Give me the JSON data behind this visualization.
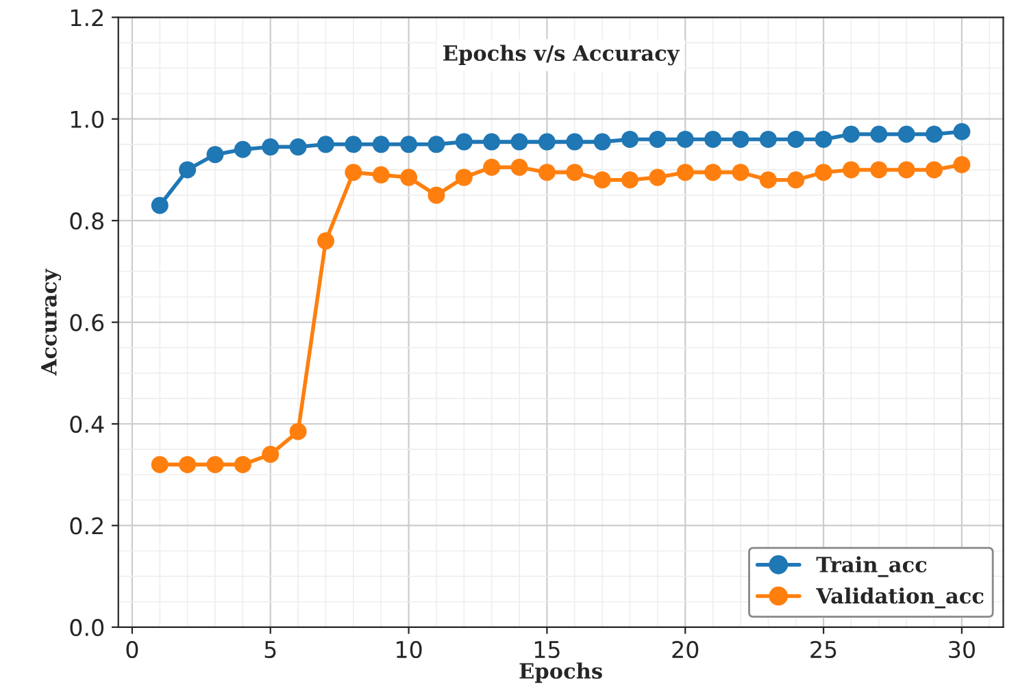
{
  "chart_data": {
    "type": "line",
    "title": "Epochs v/s Accuracy",
    "xlabel": "Epochs",
    "ylabel": "Accuracy",
    "x": [
      1,
      2,
      3,
      4,
      5,
      6,
      7,
      8,
      9,
      10,
      11,
      12,
      13,
      14,
      15,
      16,
      17,
      18,
      19,
      20,
      21,
      22,
      23,
      24,
      25,
      26,
      27,
      28,
      29,
      30
    ],
    "series": [
      {
        "name": "Train_acc",
        "color": "#1f77b4",
        "values": [
          0.83,
          0.9,
          0.93,
          0.94,
          0.945,
          0.945,
          0.95,
          0.95,
          0.95,
          0.95,
          0.95,
          0.955,
          0.955,
          0.955,
          0.955,
          0.955,
          0.955,
          0.96,
          0.96,
          0.96,
          0.96,
          0.96,
          0.96,
          0.96,
          0.96,
          0.97,
          0.97,
          0.97,
          0.97,
          0.975
        ]
      },
      {
        "name": "Validation_acc",
        "color": "#ff7f0e",
        "values": [
          0.32,
          0.32,
          0.32,
          0.32,
          0.34,
          0.385,
          0.76,
          0.895,
          0.89,
          0.885,
          0.85,
          0.885,
          0.905,
          0.905,
          0.895,
          0.895,
          0.88,
          0.88,
          0.885,
          0.895,
          0.895,
          0.895,
          0.88,
          0.88,
          0.895,
          0.9,
          0.9,
          0.9,
          0.9,
          0.91
        ]
      }
    ],
    "xlim": [
      -0.5,
      31.5
    ],
    "xticks": [
      0,
      5,
      10,
      15,
      20,
      25,
      30
    ],
    "ylim": [
      0.0,
      1.2
    ],
    "yticks": [
      {
        "value": 0.0,
        "label": "0.0"
      },
      {
        "value": 0.2,
        "label": "0.2"
      },
      {
        "value": 0.4,
        "label": "0.4"
      },
      {
        "value": 0.6,
        "label": "0.6"
      },
      {
        "value": 0.8,
        "label": "0.8"
      },
      {
        "value": 1.0,
        "label": "1.0"
      },
      {
        "value": 1.2,
        "label": "1.2"
      }
    ],
    "grid": true,
    "legend": "bottom right",
    "marker": "circle",
    "line_style": "solid"
  }
}
